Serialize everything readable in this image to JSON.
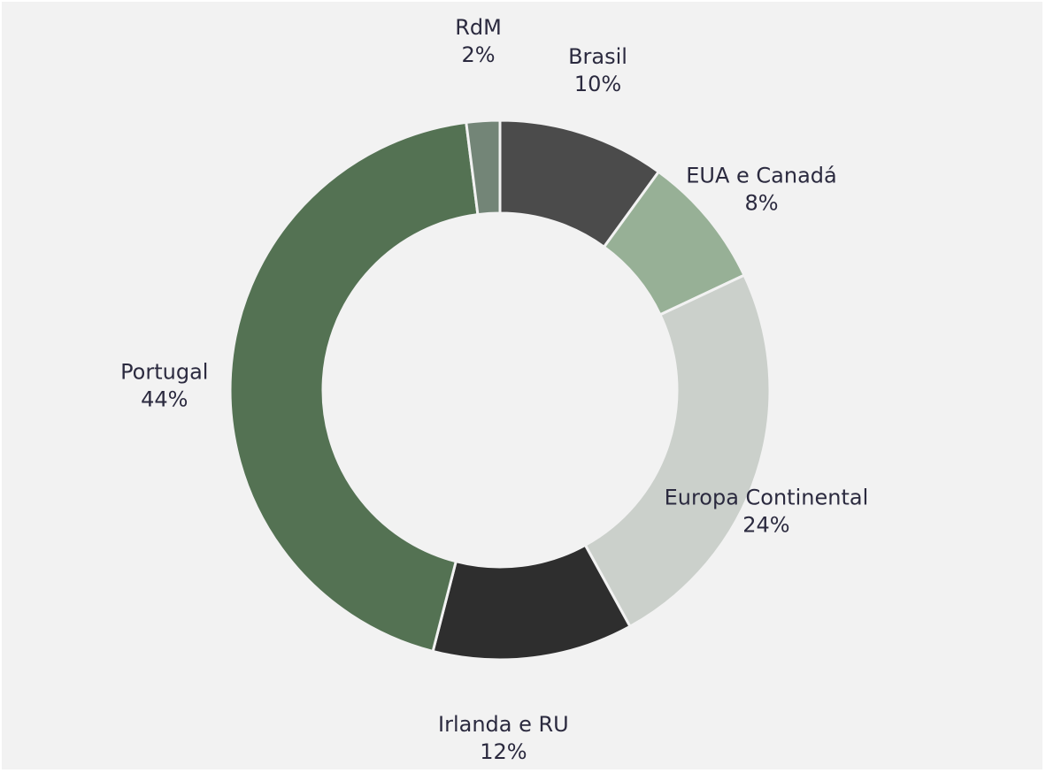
{
  "chart_data": {
    "type": "pie",
    "donut": true,
    "title": "",
    "legend": "none",
    "slices": [
      {
        "name": "Brasil",
        "value": 10,
        "value_label": "10%",
        "color": "#4b4b4b"
      },
      {
        "name": "EUA e Canadá",
        "value": 8,
        "value_label": "8%",
        "color": "#97b096"
      },
      {
        "name": "Europa Continental",
        "value": 24,
        "value_label": "24%",
        "color": "#cbd0cb"
      },
      {
        "name": "Irlanda e RU",
        "value": 12,
        "value_label": "12%",
        "color": "#2e2e2e"
      },
      {
        "name": "Portugal",
        "value": 44,
        "value_label": "44%",
        "color": "#547253"
      },
      {
        "name": "RdM",
        "value": 2,
        "value_label": "2%",
        "color": "#738577"
      }
    ]
  },
  "colors": {
    "background": "#f2f2f2",
    "label_text": "#2b2a3f",
    "separator": "#f2f2f2"
  }
}
